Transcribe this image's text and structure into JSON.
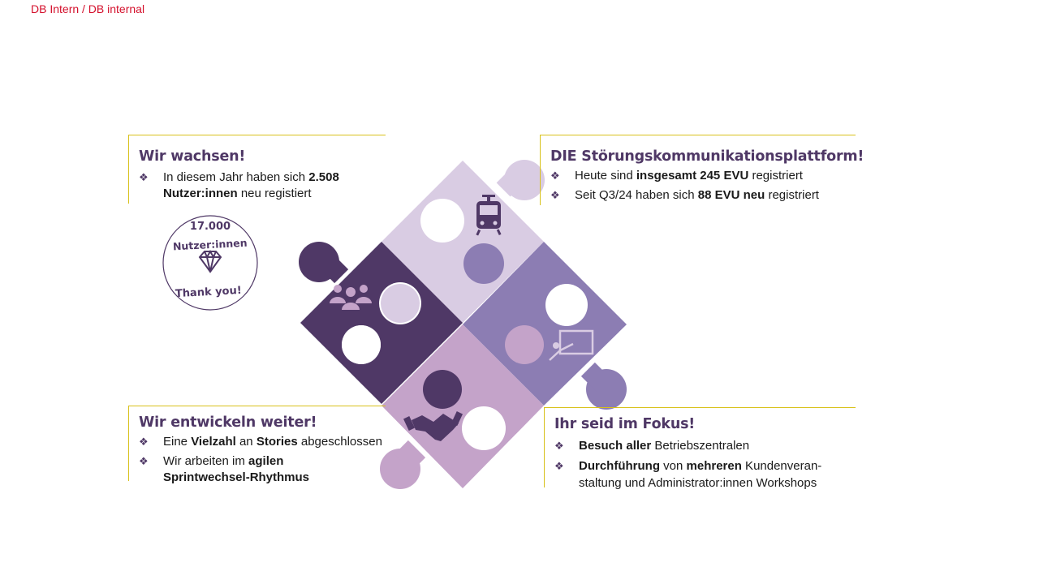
{
  "classification": "DB Intern / DB internal",
  "colors": {
    "dark_purple": "#4f3866",
    "light_purple": "#d9cce3",
    "mid_purple": "#8c7db3",
    "pink_purple": "#c4a3c9",
    "accent_yellow": "#d8c11a",
    "classification_red": "#d4102c"
  },
  "badge": {
    "count": "17.000",
    "label": "Nutzer:innen",
    "thanks": "Thank you!",
    "icon": "diamond-icon"
  },
  "puzzle_icons": [
    "group-icon",
    "tram-icon",
    "presentation-icon",
    "handshake-icon"
  ],
  "sections": {
    "top_left": {
      "heading": "Wir wachsen!",
      "bullet1": {
        "t1": "In diesem Jahr haben sich ",
        "b1": "2.508",
        "b2": "Nutzer:innen",
        "t2": " neu registiert"
      }
    },
    "top_right": {
      "heading": "DIE Störungskommunikationsplattform!",
      "bullet1": {
        "t1": "Heute sind ",
        "b1": "insgesamt 245 EVU",
        "t2": " registriert"
      },
      "bullet2": {
        "t1": "Seit Q3/24 haben sich ",
        "b1": "88 EVU neu",
        "t2": " registriert"
      }
    },
    "bottom_left": {
      "heading": "Wir entwickeln weiter!",
      "bullet1": {
        "t1": "Eine ",
        "b1": "Vielzahl",
        "t2": " an ",
        "b2": "Stories",
        "t3": " abgeschlossen"
      },
      "bullet2": {
        "t1": "Wir arbeiten  im ",
        "b1": "agilen",
        "b2": "Sprintwechsel-Rhythmus"
      }
    },
    "bottom_right": {
      "heading": "Ihr seid im Fokus!",
      "bullet1": {
        "b1": "Besuch aller",
        "t1": " Betriebszentralen"
      },
      "bullet2": {
        "b1": "Durchführung",
        "t1": " von ",
        "b2": "mehreren",
        "t2": "  Kundenveran-",
        "t3": "staltung und Administrator:innen  Workshops"
      }
    }
  }
}
